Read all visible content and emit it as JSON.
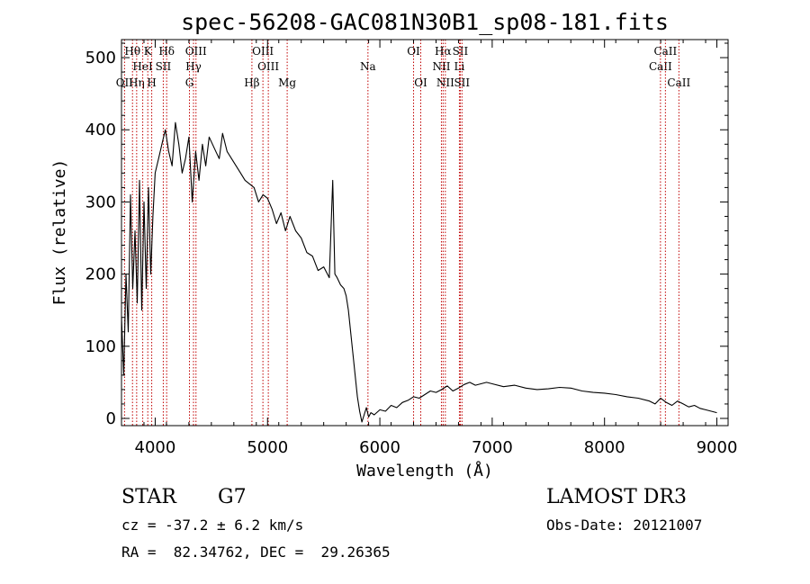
{
  "chart_data": {
    "type": "line",
    "title": "spec-56208-GAC081N30B1_sp08-181.fits",
    "xlabel": "Wavelength (Å)",
    "ylabel": "Flux (relative)",
    "xlim": [
      3700,
      9100
    ],
    "ylim": [
      -10,
      525
    ],
    "xticks": [
      4000,
      5000,
      6000,
      7000,
      8000,
      9000
    ],
    "yticks": [
      0,
      100,
      200,
      300,
      400,
      500
    ],
    "grid": false,
    "series": [
      {
        "name": "spectrum",
        "x": [
          3700,
          3720,
          3740,
          3760,
          3780,
          3800,
          3820,
          3840,
          3860,
          3880,
          3900,
          3920,
          3940,
          3960,
          3980,
          4000,
          4030,
          4060,
          4090,
          4120,
          4150,
          4180,
          4210,
          4240,
          4270,
          4300,
          4330,
          4360,
          4390,
          4420,
          4450,
          4480,
          4510,
          4540,
          4570,
          4600,
          4640,
          4680,
          4720,
          4760,
          4800,
          4840,
          4880,
          4920,
          4960,
          5000,
          5040,
          5080,
          5120,
          5160,
          5200,
          5250,
          5300,
          5350,
          5400,
          5450,
          5500,
          5550,
          5580,
          5600,
          5620,
          5650,
          5680,
          5700,
          5720,
          5740,
          5760,
          5780,
          5800,
          5820,
          5840,
          5860,
          5880,
          5900,
          5920,
          5950,
          6000,
          6050,
          6100,
          6150,
          6200,
          6250,
          6300,
          6350,
          6400,
          6450,
          6500,
          6550,
          6600,
          6650,
          6700,
          6750,
          6800,
          6850,
          6900,
          6950,
          7000,
          7100,
          7200,
          7300,
          7400,
          7500,
          7600,
          7700,
          7800,
          7900,
          8000,
          8100,
          8200,
          8300,
          8400,
          8450,
          8500,
          8550,
          8600,
          8650,
          8700,
          8750,
          8800,
          8850,
          8900,
          8950,
          9000
        ],
        "values": [
          140,
          60,
          200,
          120,
          310,
          180,
          260,
          160,
          330,
          150,
          300,
          180,
          320,
          200,
          280,
          340,
          360,
          380,
          400,
          370,
          350,
          410,
          380,
          340,
          360,
          390,
          300,
          370,
          330,
          380,
          350,
          390,
          380,
          370,
          360,
          395,
          370,
          360,
          350,
          340,
          330,
          325,
          320,
          300,
          310,
          305,
          290,
          270,
          285,
          260,
          280,
          260,
          250,
          230,
          225,
          205,
          210,
          195,
          330,
          200,
          195,
          185,
          180,
          170,
          150,
          120,
          90,
          60,
          30,
          10,
          -5,
          5,
          15,
          2,
          8,
          5,
          12,
          10,
          18,
          15,
          22,
          25,
          30,
          28,
          33,
          38,
          36,
          40,
          45,
          38,
          42,
          47,
          50,
          46,
          48,
          50,
          48,
          44,
          46,
          42,
          40,
          41,
          43,
          42,
          38,
          36,
          35,
          33,
          30,
          28,
          24,
          20,
          28,
          22,
          18,
          24,
          20,
          16,
          18,
          14,
          12,
          10,
          8
        ]
      }
    ],
    "line_markers": [
      {
        "label": "OII",
        "wavelength": 3727,
        "row": 3
      },
      {
        "label": "Hθ",
        "wavelength": 3798,
        "row": 1
      },
      {
        "label": "Hη",
        "wavelength": 3835,
        "row": 3
      },
      {
        "label": "HeI",
        "wavelength": 3889,
        "row": 2
      },
      {
        "label": "K",
        "wavelength": 3934,
        "row": 1
      },
      {
        "label": "SII",
        "wavelength": 4072,
        "row": 2
      },
      {
        "label": "H",
        "wavelength": 3969,
        "row": 3
      },
      {
        "label": "Hδ",
        "wavelength": 4102,
        "row": 1
      },
      {
        "label": "G",
        "wavelength": 4305,
        "row": 3
      },
      {
        "label": "Hγ",
        "wavelength": 4341,
        "row": 2
      },
      {
        "label": "OIII",
        "wavelength": 4363,
        "row": 1
      },
      {
        "label": "Hβ",
        "wavelength": 4861,
        "row": 3
      },
      {
        "label": "OIII",
        "wavelength": 4959,
        "row": 1
      },
      {
        "label": "OIII",
        "wavelength": 5007,
        "row": 2
      },
      {
        "label": "Mg",
        "wavelength": 5175,
        "row": 3
      },
      {
        "label": "Na",
        "wavelength": 5894,
        "row": 2
      },
      {
        "label": "OI",
        "wavelength": 6300,
        "row": 1
      },
      {
        "label": "OI",
        "wavelength": 6364,
        "row": 3
      },
      {
        "label": "NII",
        "wavelength": 6548,
        "row": 2
      },
      {
        "label": "Hα",
        "wavelength": 6563,
        "row": 1
      },
      {
        "label": "NII",
        "wavelength": 6583,
        "row": 3
      },
      {
        "label": "Li",
        "wavelength": 6708,
        "row": 2
      },
      {
        "label": "SII",
        "wavelength": 6716,
        "row": 1
      },
      {
        "label": "SII",
        "wavelength": 6731,
        "row": 3
      },
      {
        "label": "CaII",
        "wavelength": 8498,
        "row": 2
      },
      {
        "label": "CaII",
        "wavelength": 8542,
        "row": 1
      },
      {
        "label": "CaII",
        "wavelength": 8662,
        "row": 3
      }
    ]
  },
  "info": {
    "class_label": "STAR",
    "subclass": "G7",
    "survey": "LAMOST DR3",
    "cz": "cz = -37.2 ± 6.2 km/s",
    "obs_date": "Obs-Date: 20121007",
    "coords": "RA =  82.34762, DEC =  29.26365"
  },
  "colors": {
    "line": "#000000",
    "marker": "#c00000",
    "background": "#ffffff"
  }
}
